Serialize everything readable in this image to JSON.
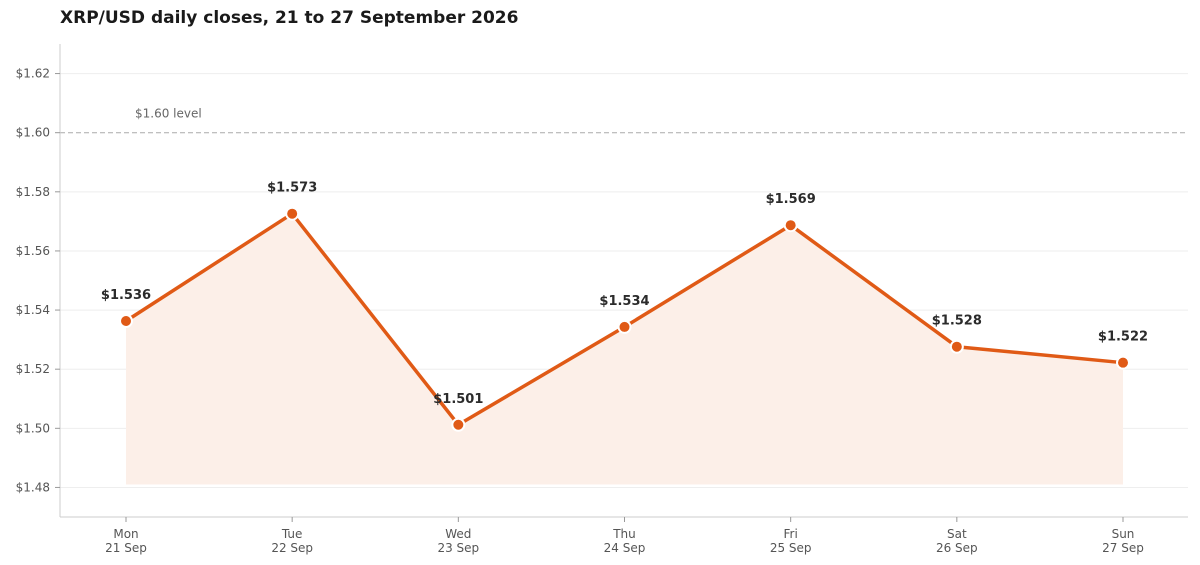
{
  "chart_data": {
    "type": "line",
    "title": "XRP/USD daily closes, 21 to 27 September 2026",
    "xlabel": "",
    "ylabel": "",
    "categories": [
      {
        "day": "Mon",
        "date": "21 Sep"
      },
      {
        "day": "Tue",
        "date": "22 Sep"
      },
      {
        "day": "Wed",
        "date": "23 Sep"
      },
      {
        "day": "Thu",
        "date": "24 Sep"
      },
      {
        "day": "Fri",
        "date": "25 Sep"
      },
      {
        "day": "Sat",
        "date": "26 Sep"
      },
      {
        "day": "Sun",
        "date": "27 Sep"
      }
    ],
    "values": [
      1.5363,
      1.5726,
      1.5012,
      1.5343,
      1.5687,
      1.5276,
      1.5222
    ],
    "data_labels": [
      "$1.536",
      "$1.573",
      "$1.501",
      "$1.534",
      "$1.569",
      "$1.528",
      "$1.522"
    ],
    "ylim": [
      1.47,
      1.63
    ],
    "yticks": [
      {
        "value": 1.48,
        "label": "$1.48"
      },
      {
        "value": 1.5,
        "label": "$1.50"
      },
      {
        "value": 1.52,
        "label": "$1.52"
      },
      {
        "value": 1.54,
        "label": "$1.54"
      },
      {
        "value": 1.56,
        "label": "$1.56"
      },
      {
        "value": 1.58,
        "label": "$1.58"
      },
      {
        "value": 1.6,
        "label": "$1.60"
      },
      {
        "value": 1.62,
        "label": "$1.62"
      }
    ],
    "area_floor": 1.481,
    "reference_line": {
      "value": 1.6,
      "label": "$1.60 level",
      "color": "#aaaaaa"
    },
    "grid": true,
    "colors": {
      "line": "#e05a16",
      "area": "#fcefe8",
      "grid": "#eeeeee",
      "axis": "#cccccc"
    }
  }
}
